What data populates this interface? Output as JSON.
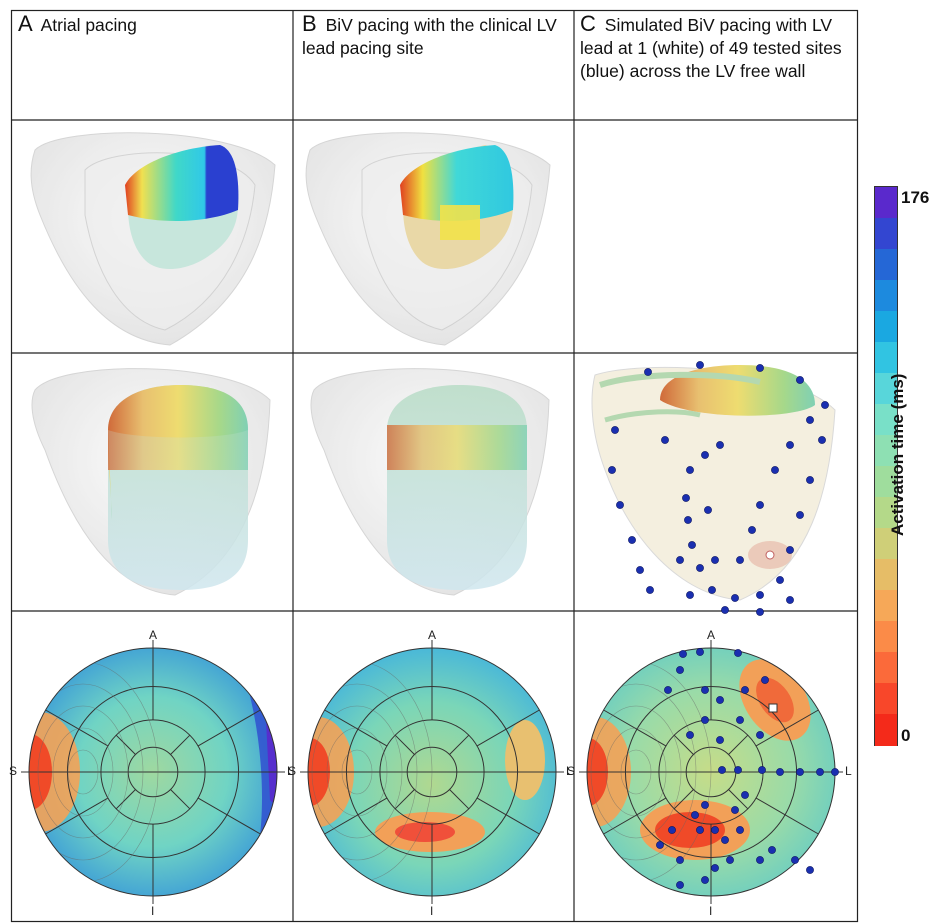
{
  "headers": [
    {
      "letter": "A",
      "text": "Atrial pacing"
    },
    {
      "letter": "B",
      "text": "BiV pacing with the clinical LV lead pacing site"
    },
    {
      "letter": "C",
      "text": "Simulated  BiV pacing with LV lead at 1 (white) of 49 tested sites (blue) across the LV free wall"
    }
  ],
  "polar_labels": {
    "top": "A",
    "left": "S",
    "right": "L",
    "bottom": "I"
  },
  "colorbar": {
    "title": "Activation time (ms)",
    "max_label": "176",
    "min_label": "0",
    "colors": [
      "#f42a1a",
      "#f8472a",
      "#fb6a3a",
      "#fb8b48",
      "#f6a858",
      "#e6bd67",
      "#cfcf78",
      "#b4d989",
      "#9fdd9d",
      "#8ee0b3",
      "#79e0c8",
      "#58d6da",
      "#31c4e2",
      "#1aa8e1",
      "#1d8ade",
      "#2567d6",
      "#3346d1",
      "#5a29cc"
    ]
  }
}
